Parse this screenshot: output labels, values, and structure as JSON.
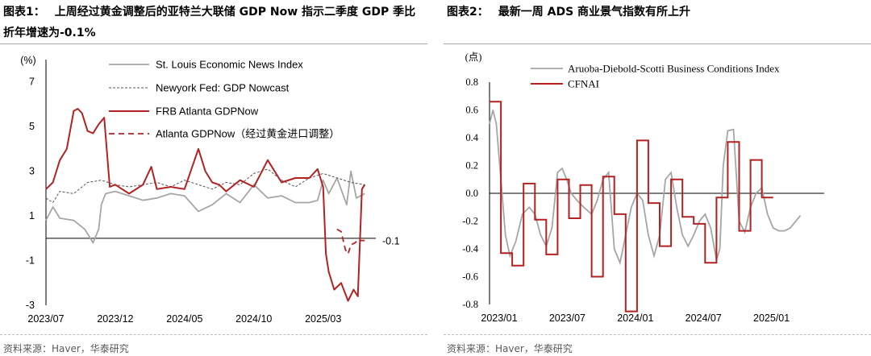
{
  "source_text": "资料来源：Haver，华泰研究",
  "charts": [
    {
      "label": "图表1：",
      "title": "上周经过黄金调整后的亚特兰大联储 GDP Now 指示二季度 GDP 季比折年增速为-0.1%",
      "unit_label": "(%)",
      "annotation": "-0.1"
    },
    {
      "label": "图表2：",
      "title": "最新一周 ADS 商业景气指数有所上升",
      "unit_label": "(点)"
    }
  ],
  "chart_data": [
    {
      "type": "line",
      "ylim": [
        -3,
        8
      ],
      "yticks": [
        7,
        5,
        3,
        1,
        -1,
        -3
      ],
      "x_range": [
        "2023-07",
        "2025-06"
      ],
      "xticks": [
        "2023/07",
        "2023/12",
        "2024/05",
        "2024/10",
        "2025/03"
      ],
      "grid": false,
      "legend_position": "top-right",
      "annotations": [
        {
          "text": "-0.1",
          "y": -0.1
        }
      ],
      "series": [
        {
          "name": "St. Louis Economic News Index",
          "color": "#a6a6a6",
          "style": "solid",
          "x": [
            0,
            0.5,
            1,
            2,
            2.8,
            3.4,
            3.8,
            4,
            4.3,
            5,
            6,
            7,
            8,
            9,
            10,
            11,
            12,
            13,
            14,
            15,
            16,
            17,
            18,
            19,
            19.6,
            20,
            20.4,
            21,
            21.7,
            22,
            22.4,
            23
          ],
          "y": [
            0.8,
            1.4,
            0.9,
            0.8,
            0.4,
            -0.2,
            0.4,
            1.5,
            2.0,
            2.1,
            1.9,
            1.7,
            1.8,
            2.0,
            1.9,
            1.2,
            1.5,
            2.0,
            1.6,
            2.4,
            1.8,
            1.9,
            1.6,
            1.6,
            1.7,
            2.6,
            2.0,
            2.7,
            1.5,
            3.0,
            1.8,
            2.0
          ]
        },
        {
          "name": "Newyork Fed: GDP Nowcast",
          "color": "#555555",
          "style": "dotted",
          "x": [
            0,
            0.5,
            1,
            2,
            3,
            4,
            5,
            6,
            7,
            8,
            9,
            10,
            11,
            12,
            13,
            14,
            15,
            16,
            17,
            18,
            19,
            20,
            21,
            22,
            23
          ],
          "y": [
            1.8,
            1.6,
            2.1,
            2.0,
            2.5,
            2.6,
            2.4,
            2.3,
            2.4,
            2.5,
            2.3,
            2.6,
            2.4,
            2.2,
            2.5,
            2.4,
            2.9,
            3.1,
            2.6,
            2.3,
            2.7,
            2.9,
            2.7,
            2.5,
            2.4
          ]
        },
        {
          "name": "FRB Atlanta GDPNow",
          "color": "#b22222",
          "style": "solid",
          "x": [
            0,
            0.5,
            1,
            1.5,
            2,
            2.3,
            2.6,
            3,
            3.4,
            3.8,
            4.2,
            4.6,
            5,
            6,
            7,
            7.6,
            8,
            9,
            10,
            11,
            11.5,
            12,
            12.5,
            13,
            14,
            15,
            16,
            17,
            18,
            19,
            19.6,
            20,
            20.2,
            20.4,
            20.8,
            21.3,
            21.8,
            22.2,
            22.5,
            22.8,
            23
          ],
          "y": [
            2.2,
            2.5,
            3.5,
            4.0,
            5.7,
            5.8,
            5.6,
            4.8,
            4.7,
            5.1,
            5.4,
            2.3,
            2.4,
            2.0,
            2.4,
            3.2,
            2.2,
            2.3,
            2.2,
            4.0,
            3.0,
            2.5,
            2.4,
            2.1,
            2.6,
            2.3,
            3.5,
            2.5,
            2.7,
            2.7,
            3.1,
            2.3,
            -0.7,
            -1.5,
            -2.3,
            -2.0,
            -2.8,
            -2.3,
            -2.6,
            2.2,
            2.4
          ]
        },
        {
          "name": "Atlanta GDPNow（经过黄金进口调整）",
          "color": "#b22222",
          "style": "dashed",
          "x": [
            21,
            21.3,
            21.6,
            21.8,
            22,
            22.3,
            22.5,
            22.8,
            23
          ],
          "y": [
            0.4,
            0.3,
            -0.5,
            -0.7,
            -0.3,
            -0.2,
            -0.1,
            -0.1,
            -0.1
          ]
        }
      ]
    },
    {
      "type": "line",
      "ylim": [
        -0.8,
        0.8
      ],
      "yticks": [
        0.8,
        0.6,
        0.4,
        0.2,
        0.0,
        -0.2,
        -0.4,
        -0.6,
        -0.8
      ],
      "x_range": [
        "2023-01",
        "2025-06"
      ],
      "xticks": [
        "2023/01",
        "2023/07",
        "2024/01",
        "2024/07",
        "2025/01"
      ],
      "grid": false,
      "legend_position": "top-right",
      "series": [
        {
          "name": "Aruoba-Diebold-Scotti Business Conditions Index",
          "color": "#a6a6a6",
          "style": "solid",
          "x": [
            0,
            0.3,
            0.6,
            1,
            1.4,
            1.8,
            2.3,
            2.9,
            3.5,
            4,
            4.5,
            5,
            5.5,
            6,
            6.4,
            6.8,
            7.2,
            7.7,
            8.3,
            9,
            9.5,
            10,
            10.5,
            11,
            11.5,
            12,
            12.5,
            13,
            13.5,
            14,
            14.5,
            15,
            15.5,
            16,
            16.5,
            17,
            17.5,
            18,
            18.5,
            19,
            19.5,
            20,
            20.3,
            20.6,
            21,
            21.5,
            22,
            22.5,
            23,
            23.5,
            24,
            24.5,
            25,
            25.5,
            26,
            26.5,
            27,
            27.4
          ],
          "y": [
            0.5,
            0.6,
            0.5,
            0.1,
            -0.3,
            -0.45,
            -0.35,
            -0.15,
            -0.1,
            -0.15,
            -0.3,
            -0.38,
            -0.25,
            0.15,
            0.18,
            0.1,
            0.0,
            -0.05,
            -0.1,
            -0.15,
            -0.05,
            0.1,
            0.15,
            -0.4,
            -0.5,
            -0.3,
            -0.1,
            0.0,
            -0.05,
            -0.3,
            -0.45,
            -0.3,
            0.1,
            0.15,
            -0.1,
            -0.3,
            -0.38,
            -0.3,
            -0.2,
            -0.15,
            -0.25,
            -0.48,
            -0.4,
            0.2,
            0.45,
            0.46,
            -0.2,
            -0.28,
            -0.1,
            0.0,
            0.04,
            -0.15,
            -0.25,
            -0.27,
            -0.27,
            -0.25,
            -0.2,
            -0.16
          ]
        },
        {
          "name": "CFNAI",
          "color": "#b22222",
          "style": "step",
          "x": [
            0,
            1,
            2,
            3,
            4,
            5,
            6,
            7,
            8,
            9,
            10,
            11,
            12,
            13,
            14,
            15,
            16,
            17,
            18,
            19,
            20,
            21,
            22,
            23,
            24,
            25
          ],
          "y": [
            0.66,
            -0.43,
            -0.52,
            0.07,
            -0.19,
            -0.44,
            0.1,
            -0.18,
            0.06,
            -0.6,
            0.12,
            -0.15,
            -0.85,
            0.38,
            -0.07,
            -0.38,
            0.1,
            -0.17,
            -0.22,
            -0.5,
            -0.03,
            0.37,
            -0.27,
            0.24,
            -0.03,
            -0.03
          ]
        }
      ]
    }
  ]
}
